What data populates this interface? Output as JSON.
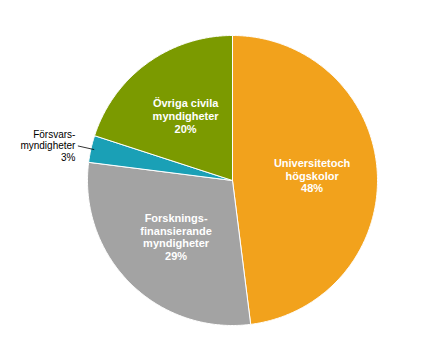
{
  "chart_data": {
    "type": "pie",
    "categories": [
      "Universitetoch\nhögskolor",
      "Forsknings-\nfinansierande\nmyndigheter",
      "Försvars-\nmyndigheter",
      "Övriga civila\nmyndigheter"
    ],
    "values": [
      48,
      29,
      3,
      20
    ],
    "value_labels": [
      "48%",
      "29%",
      "3%",
      "20%"
    ],
    "colors": [
      "#f2a21c",
      "#a3a3a3",
      "#1aa0b6",
      "#7b9a00"
    ],
    "data_labels": true
  }
}
